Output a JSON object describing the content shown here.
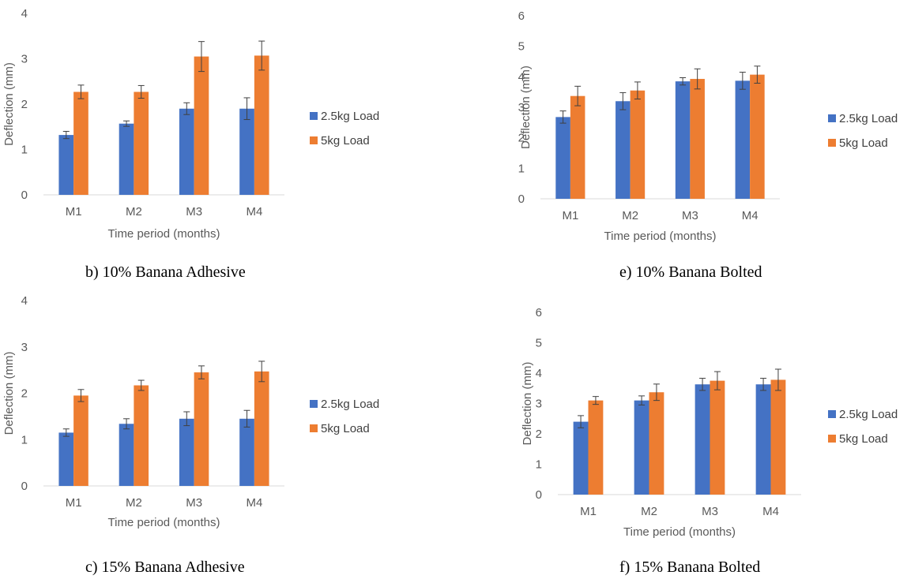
{
  "colors": {
    "series_1": "#4472C4",
    "series_2": "#ED7D31",
    "axis": "#D9D9D9",
    "text": "#595959",
    "error_bar": "#404040"
  },
  "chart_data": [
    {
      "id": "b",
      "type": "bar",
      "caption": "b) 10% Banana Adhesive",
      "xlabel": "Time period (months)",
      "ylabel": "Deflection (mm)",
      "ylim": [
        0,
        4
      ],
      "yticks": [
        "0",
        "1",
        "2",
        "3",
        "4"
      ],
      "categories": [
        "M1",
        "M2",
        "M3",
        "M4"
      ],
      "legend_position": "right",
      "series": [
        {
          "name": "2.5kg Load",
          "values": [
            1.32,
            1.57,
            1.9,
            1.9
          ],
          "errors": [
            0.08,
            0.06,
            0.13,
            0.24
          ]
        },
        {
          "name": "5kg Load",
          "values": [
            2.27,
            2.27,
            3.05,
            3.07
          ],
          "errors": [
            0.15,
            0.14,
            0.33,
            0.32
          ]
        }
      ]
    },
    {
      "id": "e",
      "type": "bar",
      "caption": "e) 10% Banana Bolted",
      "xlabel": "Time period (months)",
      "ylabel": "Deflection (mm)",
      "ylim": [
        0,
        6
      ],
      "yticks": [
        "0",
        "1",
        "2",
        "3",
        "4",
        "5",
        "6"
      ],
      "categories": [
        "M1",
        "M2",
        "M3",
        "M4"
      ],
      "legend_position": "right",
      "series": [
        {
          "name": "2.5kg Load",
          "values": [
            2.68,
            3.2,
            3.85,
            3.87
          ],
          "errors": [
            0.2,
            0.28,
            0.12,
            0.28
          ]
        },
        {
          "name": "5kg Load",
          "values": [
            3.37,
            3.55,
            3.93,
            4.07
          ],
          "errors": [
            0.32,
            0.28,
            0.33,
            0.28
          ]
        }
      ]
    },
    {
      "id": "c",
      "type": "bar",
      "caption": "c) 15% Banana Adhesive",
      "xlabel": "Time period (months)",
      "ylabel": "Deflection (mm)",
      "ylim": [
        0,
        4
      ],
      "yticks": [
        "0",
        "1",
        "2",
        "3",
        "4"
      ],
      "categories": [
        "M1",
        "M2",
        "M3",
        "M4"
      ],
      "legend_position": "right",
      "series": [
        {
          "name": "2.5kg Load",
          "values": [
            1.15,
            1.34,
            1.45,
            1.45
          ],
          "errors": [
            0.08,
            0.11,
            0.15,
            0.18
          ]
        },
        {
          "name": "5kg Load",
          "values": [
            1.95,
            2.17,
            2.45,
            2.47
          ],
          "errors": [
            0.13,
            0.11,
            0.14,
            0.22
          ]
        }
      ]
    },
    {
      "id": "f",
      "type": "bar",
      "caption": "f) 15% Banana Bolted",
      "xlabel": "Time period (months)",
      "ylabel": "Deflection (mm)",
      "ylim": [
        0,
        6
      ],
      "yticks": [
        "0",
        "1",
        "2",
        "3",
        "4",
        "5",
        "6"
      ],
      "categories": [
        "M1",
        "M2",
        "M3",
        "M4"
      ],
      "legend_position": "right",
      "series": [
        {
          "name": "2.5kg Load",
          "values": [
            2.4,
            3.1,
            3.63,
            3.63
          ],
          "errors": [
            0.2,
            0.15,
            0.2,
            0.2
          ]
        },
        {
          "name": "5kg Load",
          "values": [
            3.1,
            3.37,
            3.75,
            3.78
          ],
          "errors": [
            0.13,
            0.27,
            0.3,
            0.35
          ]
        }
      ]
    }
  ]
}
